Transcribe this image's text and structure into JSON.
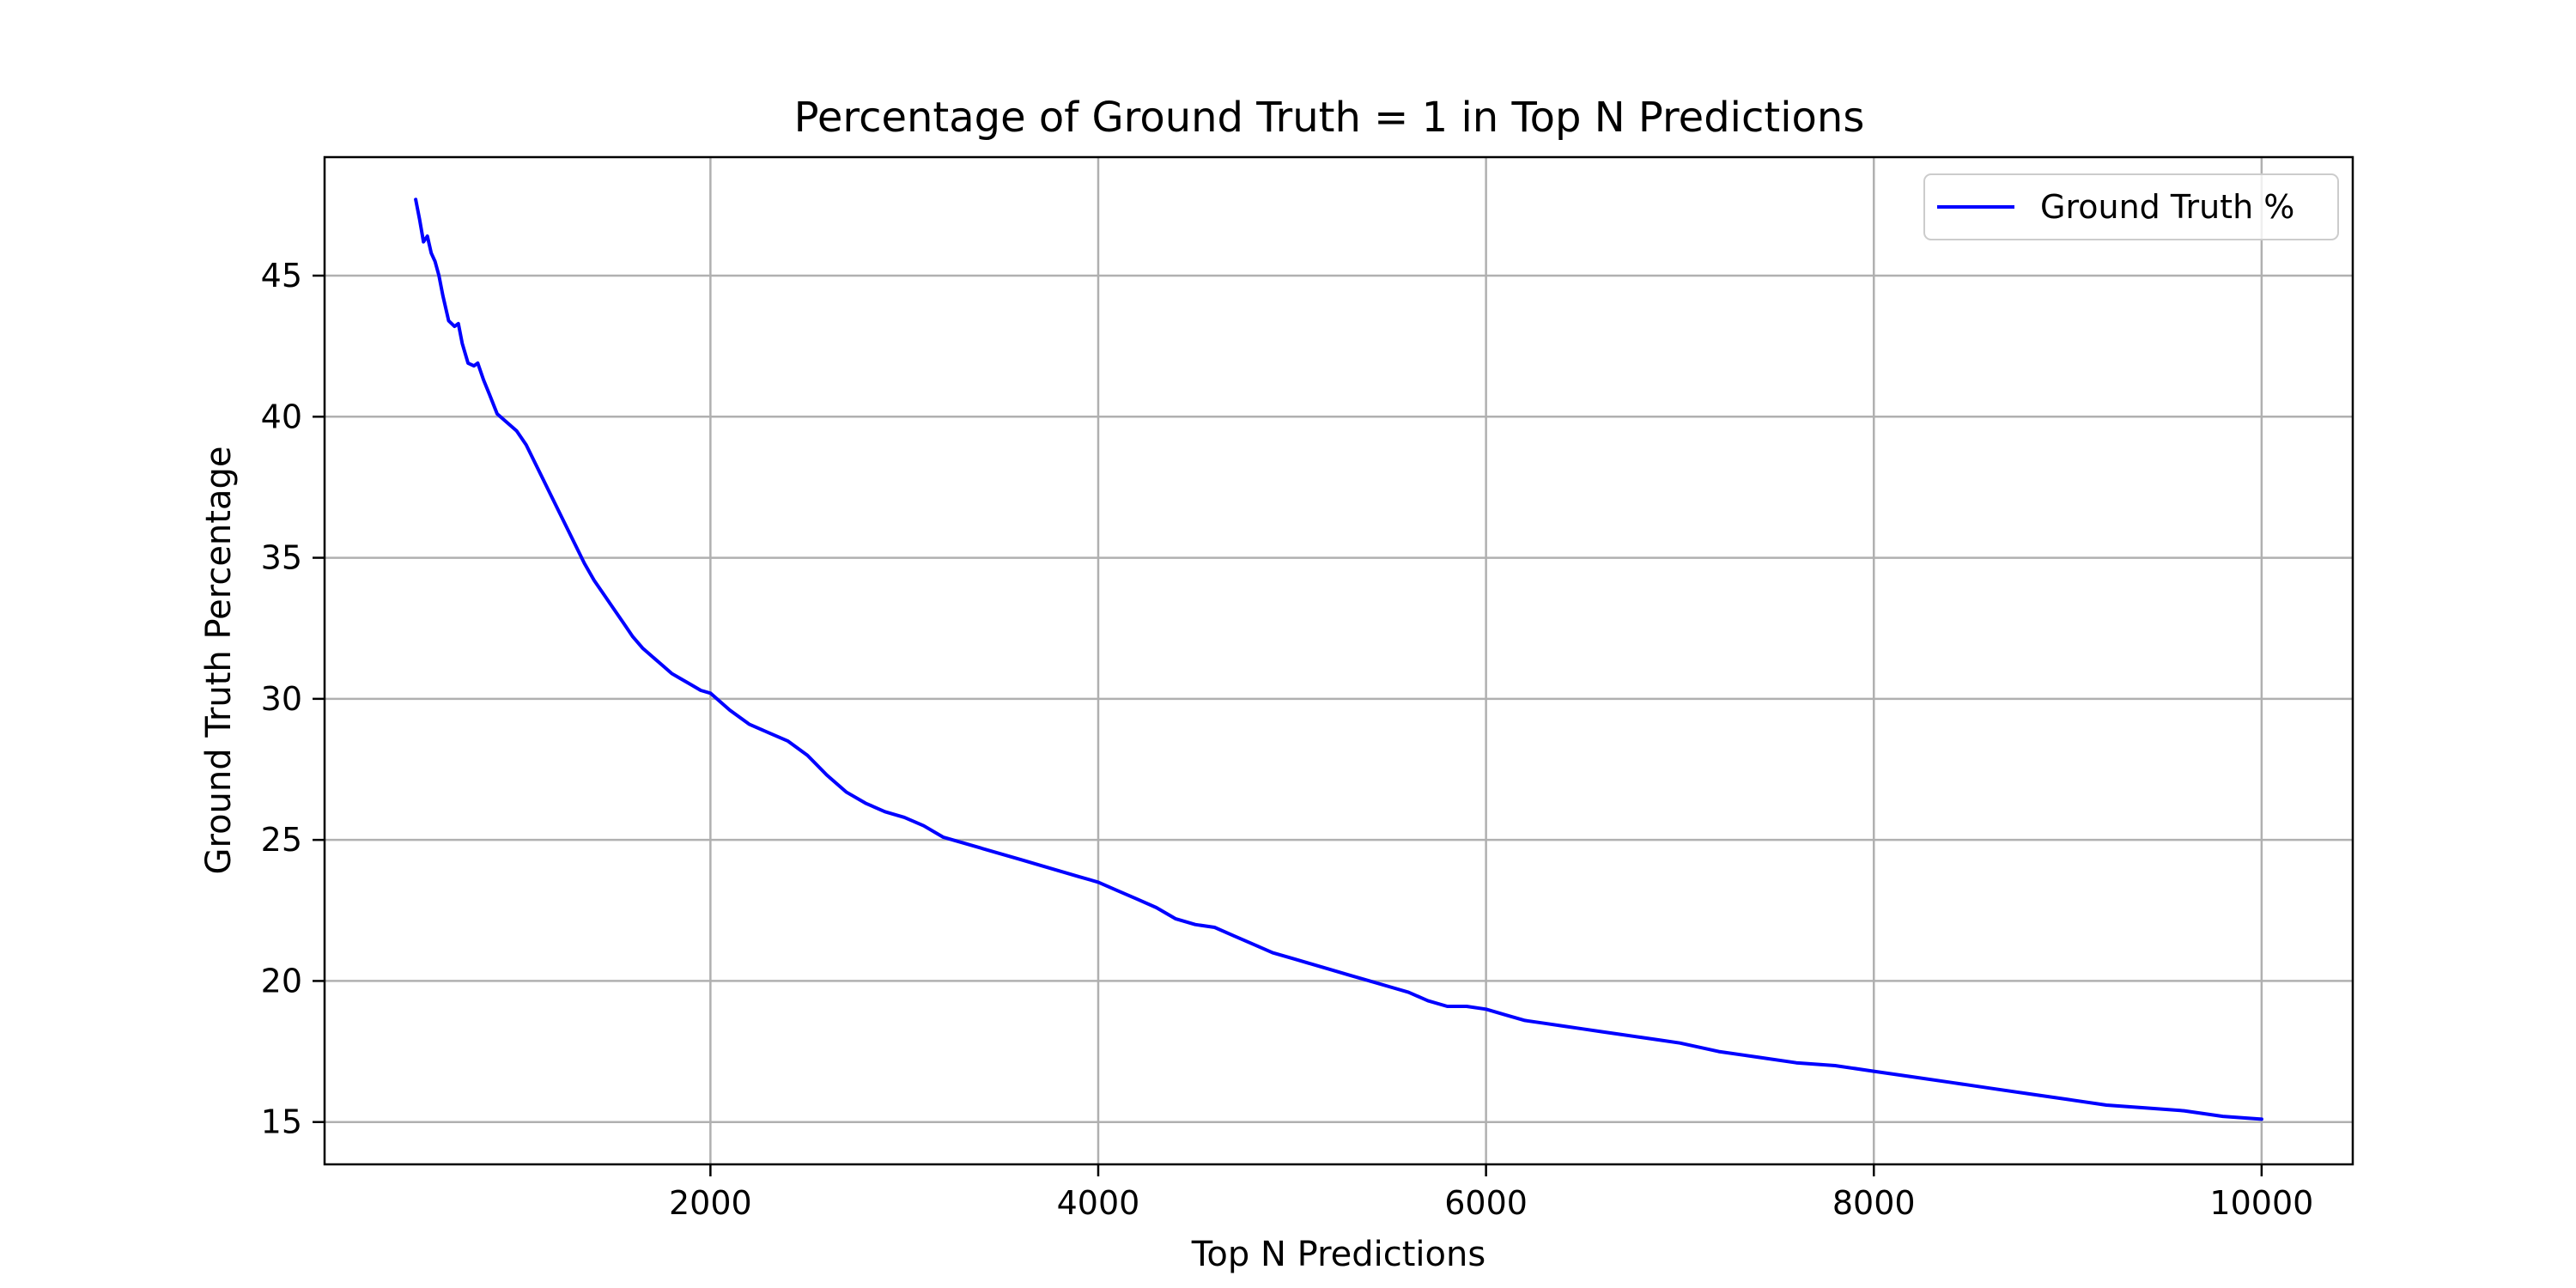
{
  "chart_data": {
    "type": "line",
    "title": "Percentage of Ground Truth = 1 in Top N Predictions",
    "xlabel": "Top N Predictions",
    "ylabel": "Ground Truth Percentage",
    "xlim": [
      10,
      10470
    ],
    "ylim": [
      13.5,
      49.2
    ],
    "xticks": [
      2000,
      4000,
      6000,
      8000,
      10000
    ],
    "yticks": [
      15,
      20,
      25,
      30,
      35,
      40,
      45
    ],
    "grid": true,
    "legend_position": "top-right",
    "series": [
      {
        "name": "Ground Truth %",
        "color": "#0000ff",
        "x": [
          480,
          500,
          520,
          540,
          560,
          580,
          600,
          620,
          650,
          680,
          700,
          720,
          750,
          780,
          800,
          830,
          860,
          900,
          950,
          1000,
          1050,
          1100,
          1150,
          1200,
          1250,
          1300,
          1350,
          1400,
          1450,
          1500,
          1550,
          1600,
          1650,
          1700,
          1750,
          1800,
          1850,
          1900,
          1950,
          2000,
          2100,
          2200,
          2300,
          2400,
          2500,
          2600,
          2700,
          2800,
          2900,
          3000,
          3100,
          3200,
          3300,
          3400,
          3500,
          3600,
          3700,
          3800,
          3900,
          4000,
          4100,
          4200,
          4300,
          4400,
          4500,
          4600,
          4700,
          4800,
          4900,
          5000,
          5100,
          5200,
          5300,
          5400,
          5500,
          5600,
          5700,
          5800,
          5900,
          6000,
          6100,
          6200,
          6300,
          6400,
          6500,
          6600,
          6700,
          6800,
          6900,
          7000,
          7200,
          7400,
          7600,
          7800,
          8000,
          8200,
          8400,
          8600,
          8800,
          9000,
          9200,
          9400,
          9600,
          9800,
          10000
        ],
        "y": [
          47.7,
          47.0,
          46.2,
          46.4,
          45.8,
          45.5,
          45.0,
          44.3,
          43.4,
          43.2,
          43.3,
          42.6,
          41.9,
          41.8,
          41.9,
          41.3,
          40.8,
          40.1,
          39.8,
          39.5,
          39.0,
          38.3,
          37.6,
          36.9,
          36.2,
          35.5,
          34.8,
          34.2,
          33.7,
          33.2,
          32.7,
          32.2,
          31.8,
          31.5,
          31.2,
          30.9,
          30.7,
          30.5,
          30.3,
          30.2,
          29.6,
          29.1,
          28.8,
          28.5,
          28.0,
          27.3,
          26.7,
          26.3,
          26.0,
          25.8,
          25.5,
          25.1,
          24.9,
          24.7,
          24.5,
          24.3,
          24.1,
          23.9,
          23.7,
          23.5,
          23.2,
          22.9,
          22.6,
          22.2,
          22.0,
          21.9,
          21.6,
          21.3,
          21.0,
          20.8,
          20.6,
          20.4,
          20.2,
          20.0,
          19.8,
          19.6,
          19.3,
          19.1,
          19.1,
          19.0,
          18.8,
          18.6,
          18.5,
          18.4,
          18.3,
          18.2,
          18.1,
          18.0,
          17.9,
          17.8,
          17.5,
          17.3,
          17.1,
          17.0,
          16.8,
          16.6,
          16.4,
          16.2,
          16.0,
          15.8,
          15.6,
          15.5,
          15.4,
          15.2,
          15.1
        ]
      }
    ]
  }
}
